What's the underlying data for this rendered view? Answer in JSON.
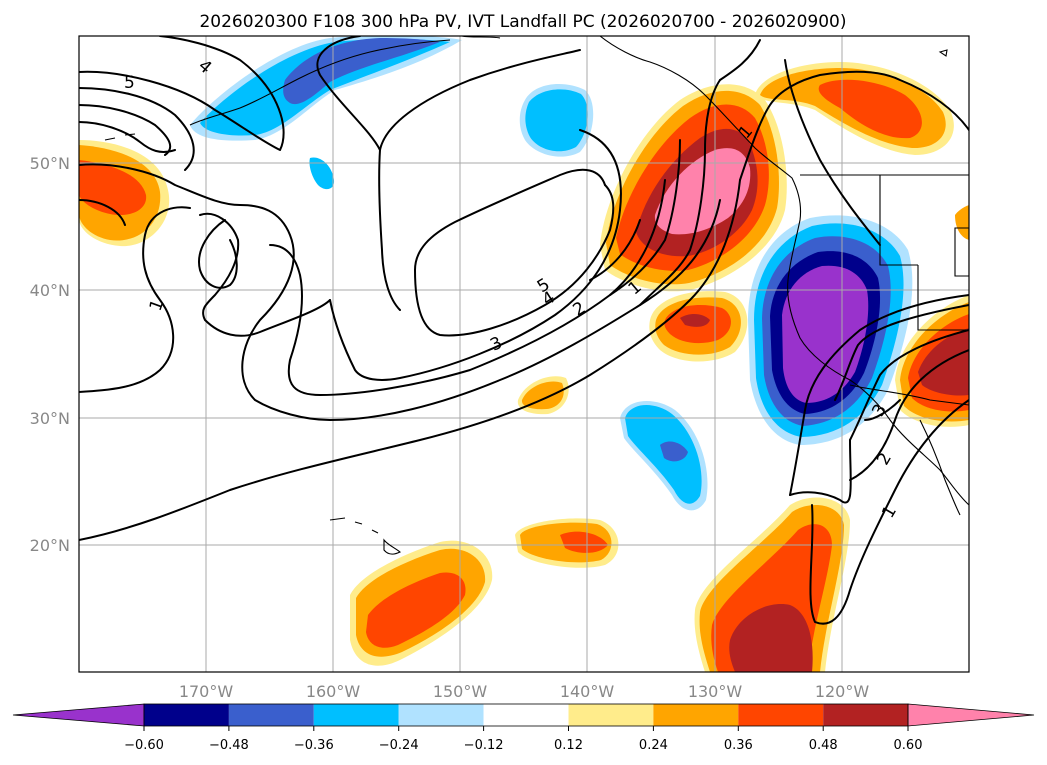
{
  "chart_data": {
    "type": "heatmap",
    "title": "2026020300 F108 300 hPa PV, IVT Landfall PC (2026020700 - 2026020900)",
    "map_extent": {
      "lon": [
        -180,
        -110
      ],
      "lat": [
        10,
        60
      ]
    },
    "lon_ticks": [
      {
        "lon": -170,
        "label": "170°W"
      },
      {
        "lon": -160,
        "label": "160°W"
      },
      {
        "lon": -150,
        "label": "150°W"
      },
      {
        "lon": -140,
        "label": "140°W"
      },
      {
        "lon": -130,
        "label": "130°W"
      },
      {
        "lon": -120,
        "label": "120°W"
      }
    ],
    "lat_ticks": [
      {
        "lat": 50,
        "label": "50°N"
      },
      {
        "lat": 40,
        "label": "40°N"
      },
      {
        "lat": 30,
        "label": "30°N"
      },
      {
        "lat": 20,
        "label": "20°N"
      }
    ],
    "colorbar": {
      "levels": [
        "−0.60",
        "−0.48",
        "−0.36",
        "−0.24",
        "−0.12",
        "0.12",
        "0.24",
        "0.36",
        "0.48",
        "0.60"
      ],
      "colors": [
        "#9932cc",
        "#00008b",
        "#3a5fcd",
        "#00bfff",
        "#b0e2ff",
        "#ffffff",
        "#ffec8b",
        "#ffa500",
        "#ff4500",
        "#b22222",
        "#ff82ab"
      ]
    },
    "contour_labels": [
      "5",
      "4",
      "1",
      "1",
      "5",
      "4",
      "2",
      "1",
      "3",
      "3",
      "2",
      "1"
    ],
    "contour_levels_pvu": [
      1,
      2,
      3,
      4,
      5
    ]
  }
}
